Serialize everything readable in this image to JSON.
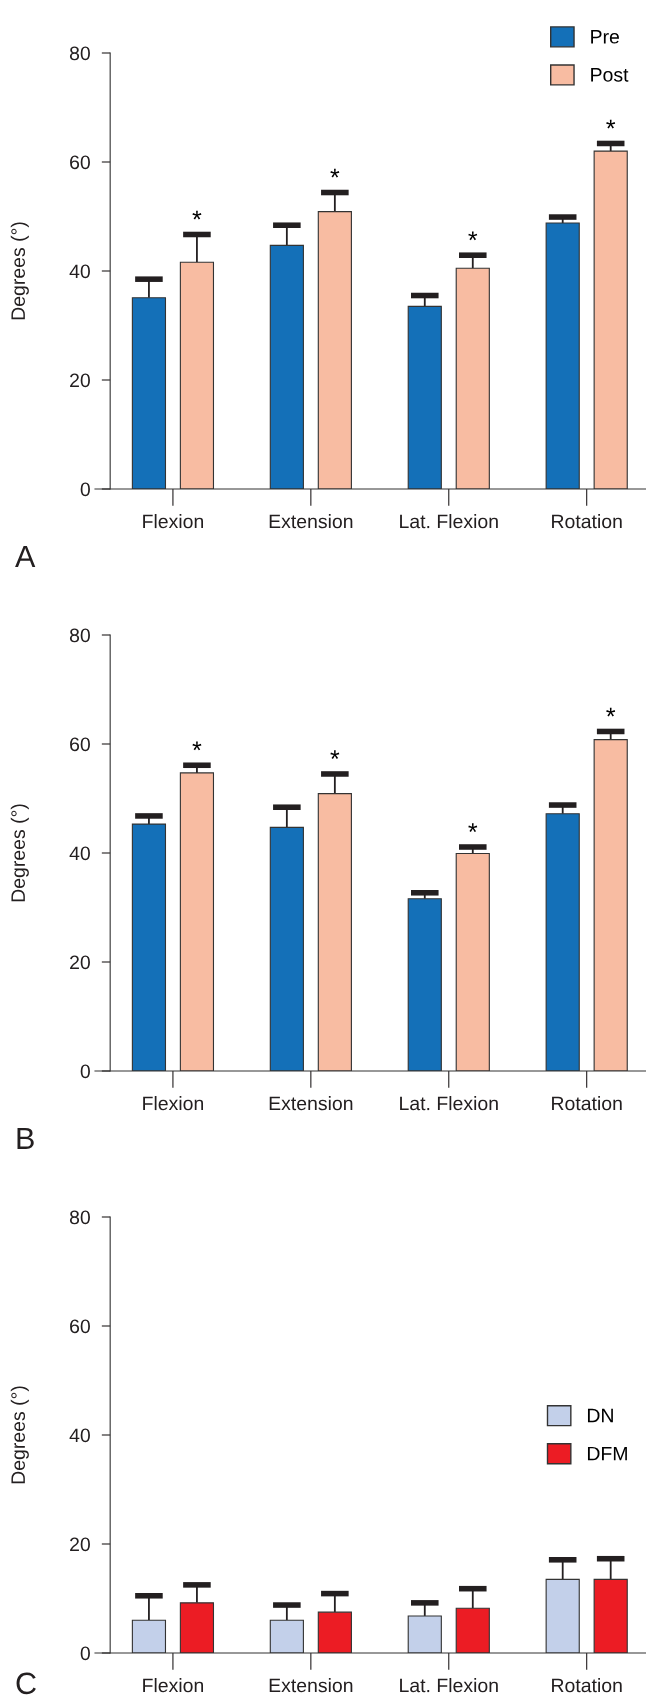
{
  "chart_data": [
    {
      "type": "bar",
      "ylabel": "Degrees (°)",
      "categories": [
        "Flexion",
        "Extension",
        "Lat. Flexion",
        "Rotation"
      ],
      "series": [
        {
          "name": "Pre",
          "color": "#1470b8",
          "values": [
            35.1,
            44.7,
            33.5,
            48.8
          ],
          "errors": [
            [
              35.1,
              38.5
            ],
            [
              44.7,
              48.4
            ],
            [
              33.5,
              35.5
            ],
            [
              48.8,
              49.9
            ]
          ]
        },
        {
          "name": "Post",
          "color": "#f8bca2",
          "values": [
            41.6,
            50.9,
            40.5,
            62.0
          ],
          "errors": [
            [
              41.6,
              46.7
            ],
            [
              50.9,
              54.4
            ],
            [
              40.5,
              42.9
            ],
            [
              62.0,
              63.4
            ]
          ]
        }
      ],
      "ylim": [
        0,
        80
      ],
      "yticks": [
        0,
        20,
        40,
        60,
        80
      ],
      "grid": false,
      "legend": "top right",
      "annotations": [
        "*",
        "*",
        "*",
        "*",
        "A"
      ]
    },
    {
      "type": "bar",
      "ylabel": "Degrees (°)",
      "categories": [
        "Flexion",
        "Extension",
        "Lat. Flexion",
        "Rotation"
      ],
      "series": [
        {
          "color": "#1470b8",
          "values": [
            45.3,
            44.7,
            31.6,
            47.2
          ],
          "errors": [
            [
              45.3,
              46.8
            ],
            [
              44.7,
              48.4
            ],
            [
              31.6,
              32.7
            ],
            [
              47.2,
              48.8
            ]
          ]
        },
        {
          "color": "#f8bca2",
          "values": [
            54.7,
            50.9,
            39.9,
            60.8
          ],
          "errors": [
            [
              54.7,
              56.1
            ],
            [
              50.9,
              54.5
            ],
            [
              39.9,
              41.1
            ],
            [
              60.8,
              62.3
            ]
          ]
        }
      ],
      "ylim": [
        0,
        80
      ],
      "yticks": [
        0,
        20,
        40,
        60,
        80
      ],
      "grid": false,
      "annotations": [
        "*",
        "*",
        "*",
        "*",
        "B"
      ]
    },
    {
      "type": "bar",
      "ylabel": "Degrees (°)",
      "categories": [
        "Flexion",
        "Extension",
        "Lat. Flexion",
        "Rotation"
      ],
      "series": [
        {
          "name": "DN",
          "color": "#c3d0ea",
          "values": [
            6.0,
            6.0,
            6.8,
            13.5
          ],
          "errors": [
            [
              6.0,
              10.5
            ],
            [
              6.0,
              8.8
            ],
            [
              6.8,
              9.2
            ],
            [
              13.5,
              17.1
            ]
          ]
        },
        {
          "name": "DFM",
          "color": "#ec1c24",
          "values": [
            9.2,
            7.5,
            8.2,
            13.5
          ],
          "errors": [
            [
              9.2,
              12.5
            ],
            [
              7.5,
              10.9
            ],
            [
              8.2,
              11.8
            ],
            [
              13.5,
              17.3
            ]
          ]
        }
      ],
      "ylim": [
        0,
        80
      ],
      "yticks": [
        0,
        20,
        40,
        60,
        80
      ],
      "grid": false,
      "legend": "right",
      "annotations": [
        "C"
      ]
    }
  ]
}
